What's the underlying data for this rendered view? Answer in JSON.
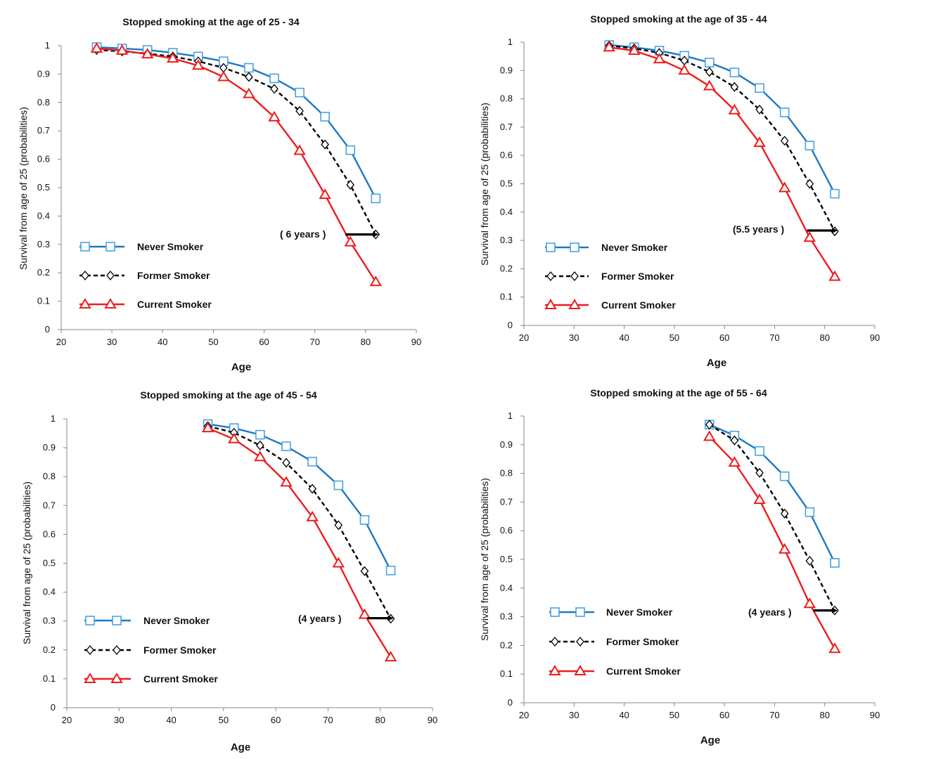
{
  "colors": {
    "never": "#1f78c1",
    "never_marker": "#4aa3df",
    "former": "#000000",
    "current": "#ee1c1c"
  },
  "chart_data": [
    {
      "type": "line",
      "title": "Stopped smoking at the age of 25 - 34",
      "xlabel": "Age",
      "ylabel": "Survival from age of 25 (probabilities)",
      "xlim": [
        20,
        90
      ],
      "ylim": [
        0,
        1
      ],
      "x_ticks": [
        20,
        30,
        40,
        50,
        60,
        70,
        80,
        90
      ],
      "y_ticks": [
        0,
        0.1,
        0.2,
        0.3,
        0.4,
        0.5,
        0.6,
        0.7,
        0.8,
        0.9,
        1
      ],
      "grid": false,
      "legend_position": "bottom-left",
      "series": [
        {
          "name": "Never Smoker",
          "marker": "square",
          "style": "solid",
          "x": [
            27,
            32,
            37,
            42,
            47,
            52,
            57,
            62,
            67,
            72,
            77,
            82
          ],
          "y": [
            0.995,
            0.99,
            0.985,
            0.975,
            0.962,
            0.945,
            0.922,
            0.885,
            0.835,
            0.75,
            0.632,
            0.462
          ]
        },
        {
          "name": "Former Smoker",
          "marker": "diamond",
          "style": "dashed",
          "x": [
            27,
            32,
            37,
            42,
            47,
            52,
            57,
            62,
            67,
            72,
            77,
            82
          ],
          "y": [
            0.985,
            0.98,
            0.972,
            0.962,
            0.945,
            0.922,
            0.89,
            0.848,
            0.77,
            0.652,
            0.51,
            0.335
          ]
        },
        {
          "name": "Current Smoker",
          "marker": "triangle",
          "style": "solid",
          "x": [
            27,
            32,
            37,
            42,
            47,
            52,
            57,
            62,
            67,
            72,
            77,
            82
          ],
          "y": [
            0.99,
            0.983,
            0.97,
            0.955,
            0.93,
            0.89,
            0.83,
            0.748,
            0.63,
            0.475,
            0.308,
            0.168
          ]
        }
      ],
      "annotation": {
        "text": "( 6 years )",
        "from_x": 76,
        "to_x": 82,
        "y": 0.335
      }
    },
    {
      "type": "line",
      "title": "Stopped smoking at the age of  35 - 44",
      "xlabel": "Age",
      "ylabel": "Survival from age of 25 (probabilities)",
      "xlim": [
        20,
        90
      ],
      "ylim": [
        0,
        1
      ],
      "x_ticks": [
        20,
        30,
        40,
        50,
        60,
        70,
        80,
        90
      ],
      "y_ticks": [
        0,
        0.1,
        0.2,
        0.3,
        0.4,
        0.5,
        0.6,
        0.7,
        0.8,
        0.9,
        1
      ],
      "grid": false,
      "legend_position": "bottom-left",
      "series": [
        {
          "name": "Never Smoker",
          "marker": "square",
          "style": "solid",
          "x": [
            37,
            42,
            47,
            52,
            57,
            62,
            67,
            72,
            77,
            82
          ],
          "y": [
            0.99,
            0.982,
            0.97,
            0.952,
            0.928,
            0.893,
            0.838,
            0.752,
            0.635,
            0.465
          ]
        },
        {
          "name": "Former Smoker",
          "marker": "diamond",
          "style": "dashed",
          "x": [
            37,
            42,
            47,
            52,
            57,
            62,
            67,
            72,
            77,
            82
          ],
          "y": [
            0.988,
            0.978,
            0.962,
            0.935,
            0.895,
            0.842,
            0.762,
            0.652,
            0.5,
            0.332
          ]
        },
        {
          "name": "Current Smoker",
          "marker": "triangle",
          "style": "solid",
          "x": [
            37,
            42,
            47,
            52,
            57,
            62,
            67,
            72,
            77,
            82
          ],
          "y": [
            0.982,
            0.97,
            0.94,
            0.9,
            0.845,
            0.76,
            0.645,
            0.485,
            0.31,
            0.172
          ]
        }
      ],
      "annotation": {
        "text": "(5.5 years )",
        "from_x": 76.5,
        "to_x": 82,
        "y": 0.335
      }
    },
    {
      "type": "line",
      "title": "Stopped smoking at the age of  45 - 54",
      "xlabel": "Age",
      "ylabel": "Survival from age of 25 (probabilities)",
      "xlim": [
        20,
        90
      ],
      "ylim": [
        0,
        1
      ],
      "x_ticks": [
        20,
        30,
        40,
        50,
        60,
        70,
        80,
        90
      ],
      "y_ticks": [
        0,
        0.1,
        0.2,
        0.3,
        0.4,
        0.5,
        0.6,
        0.7,
        0.8,
        0.9,
        1
      ],
      "grid": false,
      "legend_position": "bottom-left",
      "series": [
        {
          "name": "Never Smoker",
          "marker": "square",
          "style": "solid",
          "x": [
            47,
            52,
            57,
            62,
            67,
            72,
            77,
            82
          ],
          "y": [
            0.982,
            0.968,
            0.945,
            0.905,
            0.852,
            0.77,
            0.65,
            0.475
          ]
        },
        {
          "name": "Former Smoker",
          "marker": "diamond",
          "style": "dashed",
          "x": [
            47,
            52,
            57,
            62,
            67,
            72,
            77,
            82
          ],
          "y": [
            0.975,
            0.952,
            0.908,
            0.848,
            0.758,
            0.632,
            0.473,
            0.308
          ]
        },
        {
          "name": "Current Smoker",
          "marker": "triangle",
          "style": "solid",
          "x": [
            47,
            52,
            57,
            62,
            67,
            72,
            77,
            82
          ],
          "y": [
            0.968,
            0.93,
            0.868,
            0.78,
            0.66,
            0.5,
            0.322,
            0.175
          ]
        }
      ],
      "annotation": {
        "text": "(4 years )",
        "from_x": 77.5,
        "to_x": 82,
        "y": 0.31
      }
    },
    {
      "type": "line",
      "title": "Stopped smoking at the age of  55 - 64",
      "xlabel": "Age",
      "ylabel": "Survival from age of 25 (probabilities)",
      "xlim": [
        20,
        90
      ],
      "ylim": [
        0,
        1
      ],
      "x_ticks": [
        20,
        30,
        40,
        50,
        60,
        70,
        80,
        90
      ],
      "y_ticks": [
        0,
        0.1,
        0.2,
        0.3,
        0.4,
        0.5,
        0.6,
        0.7,
        0.8,
        0.9,
        1
      ],
      "grid": false,
      "legend_position": "bottom-left",
      "series": [
        {
          "name": "Never Smoker",
          "marker": "square",
          "style": "solid",
          "x": [
            57,
            62,
            67,
            72,
            77,
            82
          ],
          "y": [
            0.97,
            0.932,
            0.878,
            0.79,
            0.665,
            0.488
          ]
        },
        {
          "name": "Former Smoker",
          "marker": "diamond",
          "style": "dashed",
          "x": [
            57,
            62,
            67,
            72,
            77,
            82
          ],
          "y": [
            0.97,
            0.915,
            0.802,
            0.66,
            0.495,
            0.322
          ]
        },
        {
          "name": "Current Smoker",
          "marker": "triangle",
          "style": "solid",
          "x": [
            57,
            62,
            67,
            72,
            77,
            82
          ],
          "y": [
            0.928,
            0.838,
            0.708,
            0.535,
            0.345,
            0.188
          ]
        }
      ],
      "annotation": {
        "text": "(4 years )",
        "from_x": 77.8,
        "to_x": 82,
        "y": 0.322
      }
    }
  ]
}
